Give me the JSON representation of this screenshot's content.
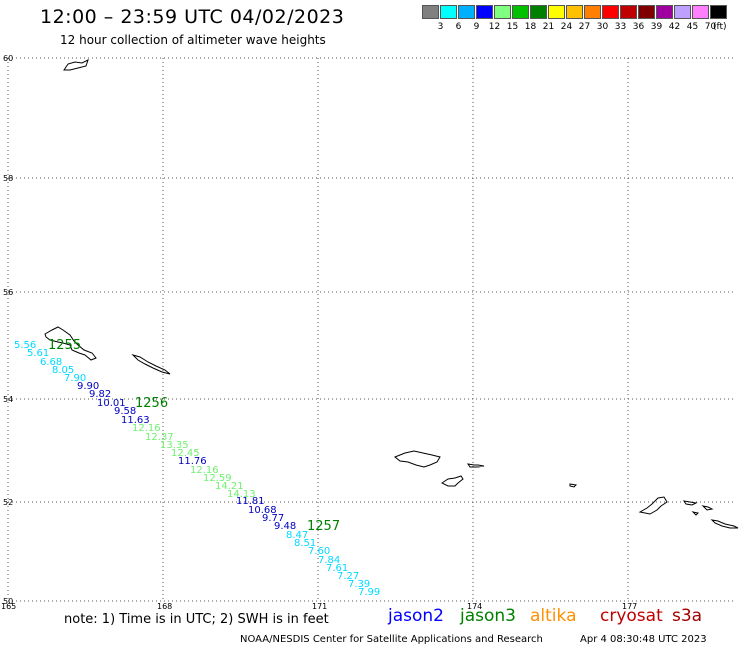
{
  "header": {
    "title": "12:00 – 23:59 UTC 04/02/2023",
    "subtitle": "12 hour collection of altimeter wave heights"
  },
  "color_scale": {
    "unit": "(ft)",
    "colors": [
      "#808080",
      "#00ffff",
      "#00b0ff",
      "#0000ff",
      "#80ff80",
      "#00c000",
      "#008000",
      "#ffff00",
      "#ffc000",
      "#ff8000",
      "#ff0000",
      "#c00000",
      "#800000",
      "#a000a0",
      "#c0a0ff",
      "#ff80ff",
      "#000000"
    ],
    "labels": [
      "",
      "3",
      "6",
      "9",
      "12",
      "15",
      "18",
      "21",
      "24",
      "27",
      "30",
      "33",
      "36",
      "39",
      "42",
      "45",
      "70"
    ]
  },
  "axes": {
    "lat_labels": [
      "60",
      "58",
      "56",
      "54",
      "52",
      "50"
    ],
    "lon_labels": [
      "165",
      "168",
      "171",
      "174",
      "177"
    ]
  },
  "track_labels": [
    {
      "text": "5.56",
      "color": "#00d8ff"
    },
    {
      "text": "5.61",
      "color": "#00d8ff"
    },
    {
      "text": "6.68",
      "color": "#00d8ff"
    },
    {
      "text": "8.05",
      "color": "#00d8ff"
    },
    {
      "text": "7.90",
      "color": "#00d8ff"
    },
    {
      "text": "9.90",
      "color": "#0000c0"
    },
    {
      "text": "9.82",
      "color": "#0000c0"
    },
    {
      "text": "10.01",
      "color": "#0000c0"
    },
    {
      "text": "9.58",
      "color": "#0000c0"
    },
    {
      "text": "11.63",
      "color": "#0000c0"
    },
    {
      "text": "12.16",
      "color": "#70f070"
    },
    {
      "text": "12.37",
      "color": "#70f070"
    },
    {
      "text": "13.35",
      "color": "#70f070"
    },
    {
      "text": "12.45",
      "color": "#70f070"
    },
    {
      "text": "11.76",
      "color": "#0000c0"
    },
    {
      "text": "12.16",
      "color": "#70f070"
    },
    {
      "text": "12.59",
      "color": "#70f070"
    },
    {
      "text": "14.21",
      "color": "#70f070"
    },
    {
      "text": "14.13",
      "color": "#70f070"
    },
    {
      "text": "11.81",
      "color": "#0000c0"
    },
    {
      "text": "10.68",
      "color": "#0000c0"
    },
    {
      "text": "9.77",
      "color": "#0000c0"
    },
    {
      "text": "9.48",
      "color": "#0000c0"
    },
    {
      "text": "8.47",
      "color": "#00d8ff"
    },
    {
      "text": "8.51",
      "color": "#00d8ff"
    },
    {
      "text": "7.60",
      "color": "#00d8ff"
    },
    {
      "text": "7.84",
      "color": "#00d8ff"
    },
    {
      "text": "7.61",
      "color": "#00d8ff"
    },
    {
      "text": "7.27",
      "color": "#00d8ff"
    },
    {
      "text": "7.39",
      "color": "#00d8ff"
    },
    {
      "text": "7.99",
      "color": "#00d8ff"
    }
  ],
  "time_labels": [
    "1255",
    "1256",
    "1257"
  ],
  "time_label_color": "#008000",
  "footer": {
    "note": "note: 1) Time is in UTC; 2) SWH is in feet",
    "satellites": [
      {
        "name": "jason2",
        "color": "#0000ff"
      },
      {
        "name": "jason3",
        "color": "#008000"
      },
      {
        "name": "altika",
        "color": "#ff9000"
      },
      {
        "name": "cryosat",
        "color": "#c00000"
      },
      {
        "name": "s3a",
        "color": "#a00000"
      }
    ],
    "credit": "NOAA/NESDIS Center for Satellite Applications and Research",
    "timestamp": "Apr  4 08:30:48 UTC 2023"
  }
}
